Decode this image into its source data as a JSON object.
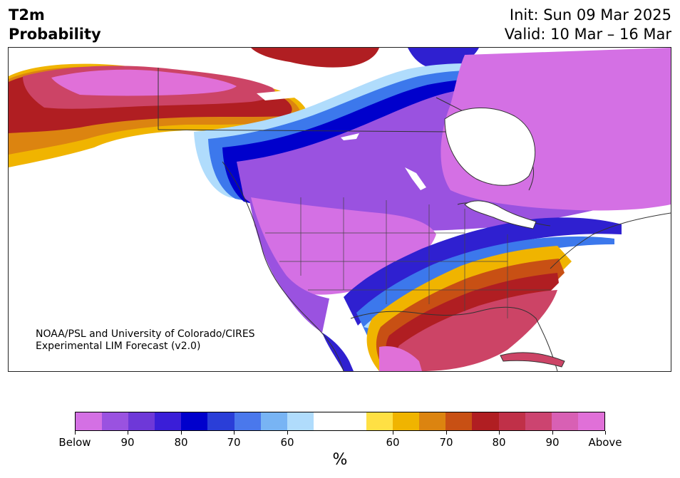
{
  "header": {
    "title_lines": [
      "T2m",
      "Probability"
    ],
    "init": "Init: Sun 09 Mar 2025",
    "valid": "Valid: 10 Mar – 16 Mar"
  },
  "map": {
    "region": "North America",
    "credit_lines": [
      "NOAA/PSL and University of Colorado/CIRES",
      "Experimental LIM Forecast (v2.0)"
    ],
    "category_colors": {
      "below_90_plus": "#d470e4",
      "below_85_90": "#9a52e0",
      "below_80_85": "#6e38d8",
      "below_70_80": "#2f20d0",
      "below_60_70": "#3c78ec",
      "near_normal": "#ffffff",
      "above_60_70": "#f0b400",
      "above_70_80": "#c85014",
      "above_80_85": "#b01e22",
      "above_85_90": "#cc4466",
      "above_90_plus": "#e070d8"
    }
  },
  "colorbar": {
    "colors": [
      "#d470e4",
      "#9a52e0",
      "#6e38d8",
      "#3a1ed8",
      "#0000cc",
      "#2a3ed8",
      "#4a78ec",
      "#78b4f4",
      "#b0dcfc",
      "#ffffff",
      "#ffffff",
      "#ffe044",
      "#f0b400",
      "#dc8410",
      "#c85014",
      "#b01e22",
      "#c03048",
      "#cc4470",
      "#d860b4",
      "#e070d8"
    ],
    "tick_labels": [
      "Below",
      "90",
      "80",
      "70",
      "60",
      "60",
      "70",
      "80",
      "90",
      "Above"
    ],
    "unit": "%"
  }
}
